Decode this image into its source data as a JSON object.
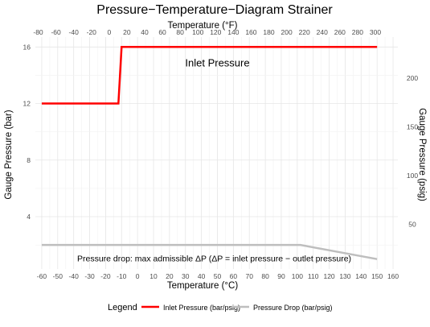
{
  "chart_data": {
    "type": "line",
    "title": "Pressure−Temperature−Diagram Strainer",
    "xlabel": "Temperature (°C)",
    "xlabel_top": "Temperature (°F)",
    "ylabel": "Gauge Pressure (bar)",
    "ylabel_right": "Gauge Pressure (psig)",
    "x_ticks": [
      -60,
      -50,
      -40,
      -30,
      -20,
      -10,
      0,
      10,
      20,
      30,
      40,
      50,
      60,
      70,
      80,
      90,
      100,
      110,
      120,
      130,
      140,
      150,
      160
    ],
    "x_top_ticks": [
      -80,
      -60,
      -40,
      -20,
      0,
      20,
      40,
      60,
      80,
      100,
      120,
      140,
      160,
      180,
      200,
      220,
      240,
      260,
      280,
      300
    ],
    "y_ticks": [
      4,
      8,
      12,
      16
    ],
    "y_right_ticks": [
      50,
      100,
      150,
      200
    ],
    "xlim": [
      -64,
      163
    ],
    "ylim": [
      0.3,
      16.7
    ],
    "grid": true,
    "series": [
      {
        "name": "Inlet Pressure (bar/psig)",
        "color": "#ff0000",
        "x": [
          -60,
          -12,
          -10,
          150
        ],
        "y": [
          12,
          12,
          16,
          16
        ]
      },
      {
        "name": "Pressure Drop (bar/psig)",
        "color": "#bebebe",
        "x": [
          -60,
          102,
          150
        ],
        "y": [
          2,
          2,
          1
        ]
      }
    ],
    "annotations": [
      {
        "text": "Inlet Pressure",
        "x": 50,
        "y": 14.8
      },
      {
        "text": "Pressure drop: max admissible ΔP (ΔP =  inlet pressure − outlet pressure)",
        "x": 48,
        "y": 1.0
      }
    ],
    "legend": {
      "title": "Legend",
      "position": "bottom",
      "labels": [
        "Inlet Pressure (bar/psig)",
        "Pressure Drop (bar/psig)"
      ]
    }
  }
}
